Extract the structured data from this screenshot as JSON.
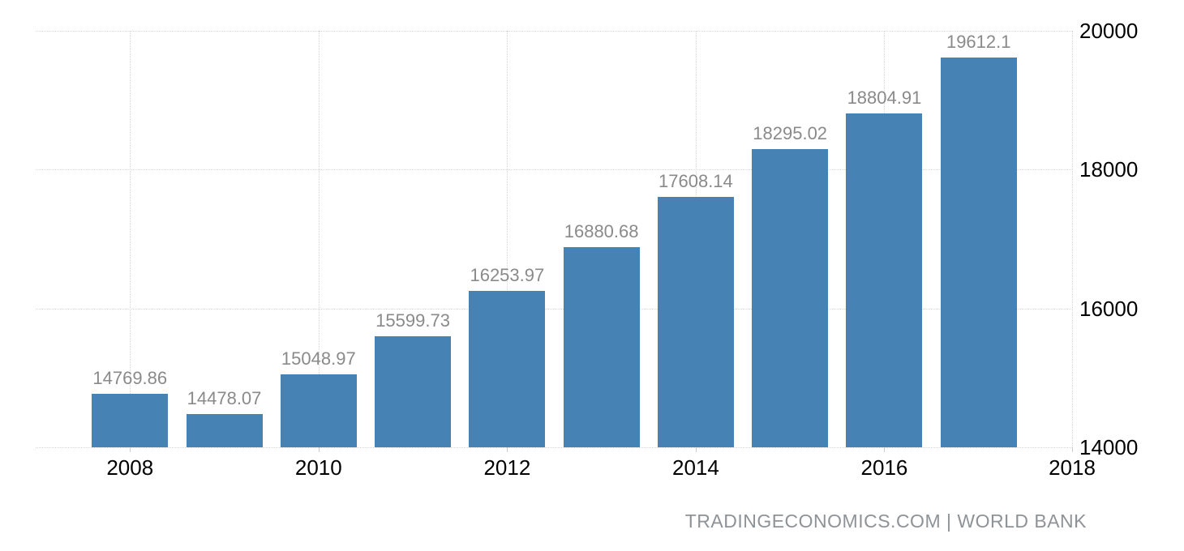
{
  "chart_data": {
    "type": "bar",
    "title": "",
    "xlabel": "",
    "ylabel": "",
    "x": [
      2008,
      2009,
      2010,
      2011,
      2012,
      2013,
      2014,
      2015,
      2016,
      2017
    ],
    "values": [
      14769.86,
      14478.07,
      15048.97,
      15599.73,
      16253.97,
      16880.68,
      17608.14,
      18295.02,
      18804.91,
      19612.1
    ],
    "bar_labels": [
      "14769.86",
      "14478.07",
      "15048.97",
      "15599.73",
      "16253.97",
      "16880.68",
      "17608.14",
      "18295.02",
      "18804.91",
      "19612.1"
    ],
    "x_ticks": [
      2008,
      2010,
      2012,
      2014,
      2016,
      2018
    ],
    "y_ticks": [
      14000,
      16000,
      18000,
      20000
    ],
    "xlim": [
      2007,
      2018
    ],
    "ylim": [
      14000,
      20000
    ],
    "grid": "dotted",
    "legend_position": "none",
    "colors": {
      "bar": "#4682b4",
      "value_label": "#8a8a8a",
      "tick_label": "#000000",
      "gridline": "#d6d6d6"
    }
  },
  "footer": {
    "source": "TRADINGECONOMICS.COM | WORLD BANK"
  }
}
